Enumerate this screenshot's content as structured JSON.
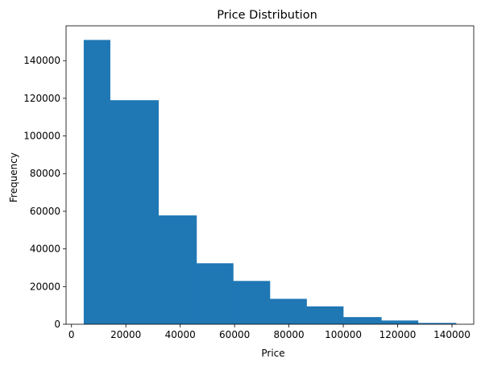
{
  "chart_data": {
    "type": "bar",
    "title": "Price Distribution",
    "xlabel": "Price",
    "ylabel": "Frequency",
    "bar_color": "#1f77b4",
    "grid": false,
    "xlim": [
      -2000,
      148000
    ],
    "ylim": [
      0,
      158500
    ],
    "xticks": [
      0,
      20000,
      40000,
      60000,
      80000,
      100000,
      120000,
      140000
    ],
    "xtick_labels": [
      "0",
      "20000",
      "40000",
      "60000",
      "80000",
      "100000",
      "120000",
      "140000"
    ],
    "yticks": [
      0,
      20000,
      40000,
      60000,
      80000,
      100000,
      120000,
      140000
    ],
    "ytick_labels": [
      "0",
      "20000",
      "40000",
      "60000",
      "80000",
      "100000",
      "120000",
      "140000"
    ],
    "bins": [
      {
        "start": 4500,
        "end": 14200,
        "count": 151000
      },
      {
        "start": 14200,
        "end": 32000,
        "count": 119000
      },
      {
        "start": 32000,
        "end": 46000,
        "count": 57800
      },
      {
        "start": 46000,
        "end": 59500,
        "count": 32400
      },
      {
        "start": 59500,
        "end": 73000,
        "count": 23000
      },
      {
        "start": 73000,
        "end": 86500,
        "count": 13500
      },
      {
        "start": 86500,
        "end": 100000,
        "count": 9500
      },
      {
        "start": 100000,
        "end": 114000,
        "count": 3800
      },
      {
        "start": 114000,
        "end": 127500,
        "count": 2000
      },
      {
        "start": 127500,
        "end": 141500,
        "count": 700
      }
    ]
  }
}
